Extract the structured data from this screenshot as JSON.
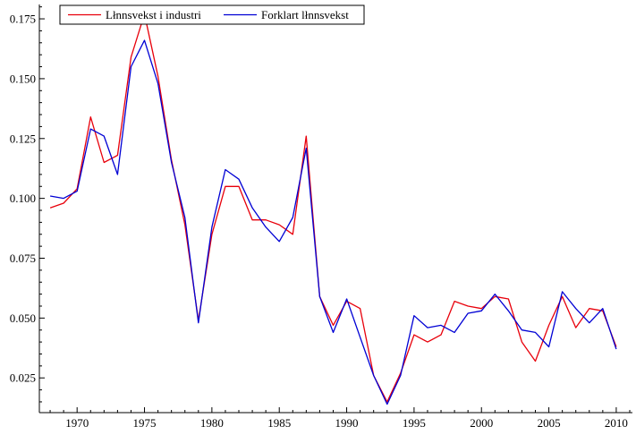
{
  "chart_data": {
    "type": "line",
    "title": "",
    "xlabel": "",
    "ylabel": "",
    "xlim": [
      1967.2,
      2011.2
    ],
    "ylim": [
      0.0105,
      0.181
    ],
    "x_ticks": [
      1970,
      1975,
      1980,
      1985,
      1990,
      1995,
      2000,
      2005,
      2010
    ],
    "x_tick_labels": [
      "1970",
      "1975",
      "1980",
      "1985",
      "1990",
      "1995",
      "2000",
      "2005",
      "2010"
    ],
    "y_ticks": [
      0.025,
      0.05,
      0.075,
      0.1,
      0.125,
      0.15,
      0.175
    ],
    "y_tick_labels": [
      "0.025",
      "0.050",
      "0.075",
      "0.100",
      "0.125",
      "0.150",
      "0.175"
    ],
    "grid": false,
    "legend_position": "top-left",
    "x": [
      1968,
      1969,
      1970,
      1971,
      1972,
      1973,
      1974,
      1975,
      1976,
      1977,
      1978,
      1979,
      1980,
      1981,
      1982,
      1983,
      1984,
      1985,
      1986,
      1987,
      1988,
      1989,
      1990,
      1991,
      1992,
      1993,
      1994,
      1995,
      1996,
      1997,
      1998,
      1999,
      2000,
      2001,
      2002,
      2003,
      2004,
      2005,
      2006,
      2007,
      2008,
      2009,
      2010
    ],
    "series": [
      {
        "name": "Lłnnsvekst i industri",
        "color": "#e8000b",
        "values": [
          0.096,
          0.098,
          0.104,
          0.134,
          0.115,
          0.118,
          0.159,
          0.177,
          0.151,
          0.116,
          0.089,
          0.049,
          0.085,
          0.105,
          0.105,
          0.091,
          0.091,
          0.089,
          0.085,
          0.126,
          0.059,
          0.047,
          0.057,
          0.054,
          0.026,
          0.015,
          0.027,
          0.043,
          0.04,
          0.043,
          0.057,
          0.055,
          0.054,
          0.059,
          0.058,
          0.04,
          0.032,
          0.047,
          0.059,
          0.046,
          0.054,
          0.053,
          0.038
        ]
      },
      {
        "name": "Forklart lłnnsvekst",
        "color": "#0000d4",
        "values": [
          0.101,
          0.1,
          0.103,
          0.129,
          0.126,
          0.11,
          0.155,
          0.166,
          0.148,
          0.115,
          0.092,
          0.048,
          0.088,
          0.112,
          0.108,
          0.096,
          0.088,
          0.082,
          0.092,
          0.121,
          0.059,
          0.044,
          0.058,
          0.042,
          0.026,
          0.014,
          0.026,
          0.051,
          0.046,
          0.047,
          0.044,
          0.052,
          0.053,
          0.06,
          0.053,
          0.045,
          0.044,
          0.038,
          0.061,
          0.054,
          0.048,
          0.054,
          0.037
        ]
      }
    ]
  }
}
